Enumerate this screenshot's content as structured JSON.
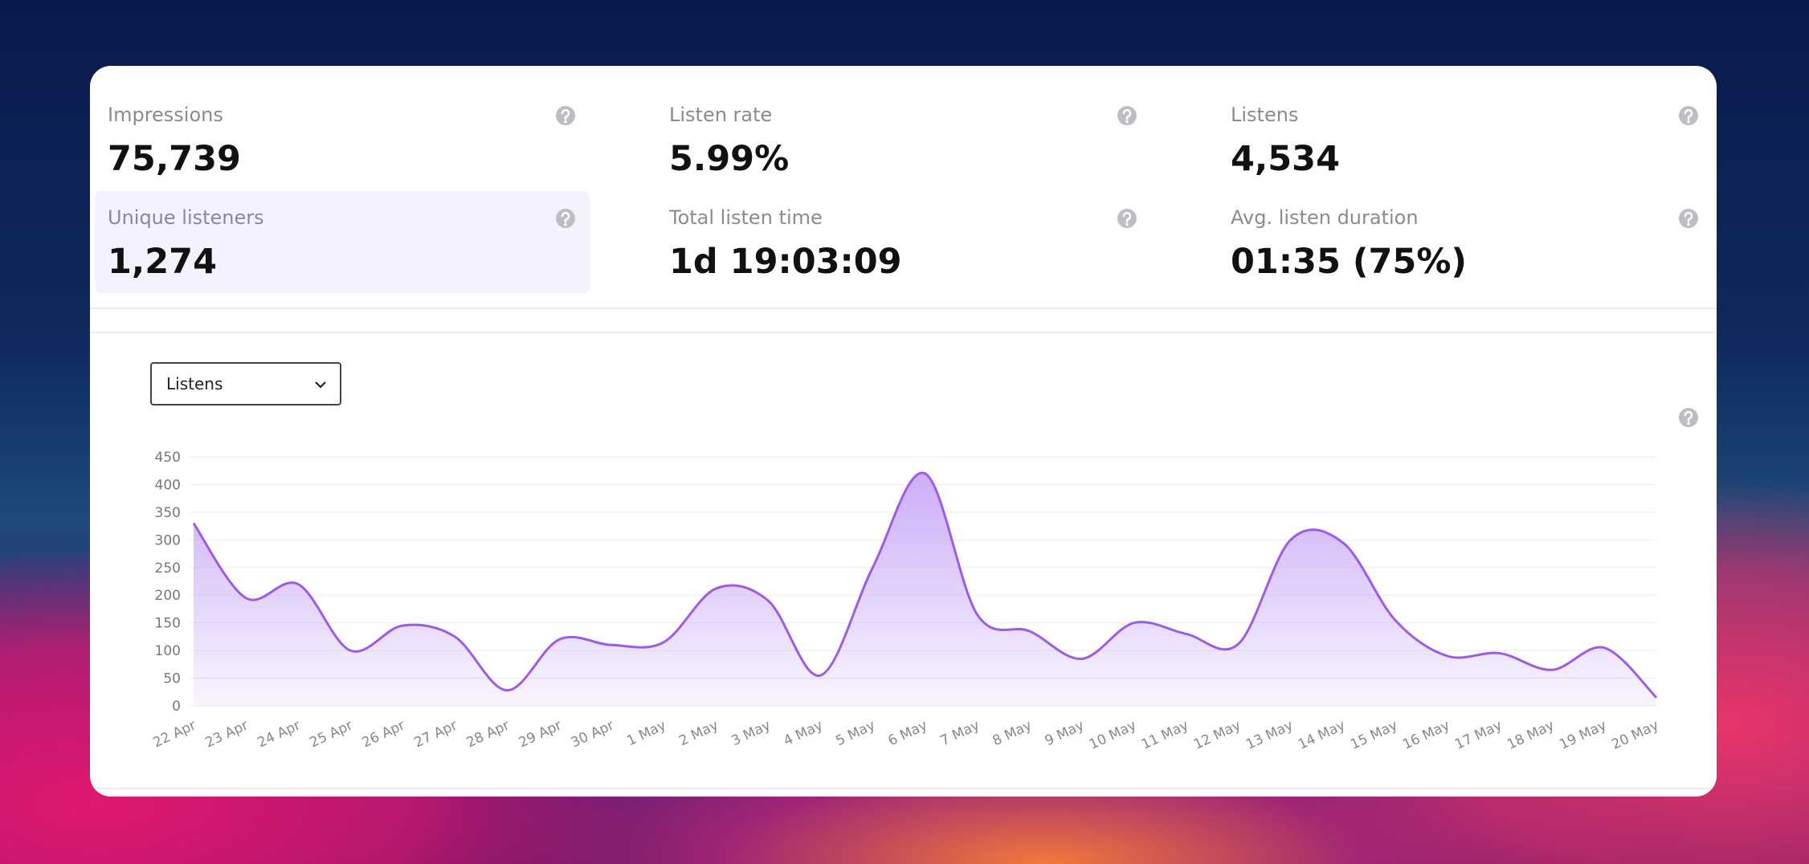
{
  "metrics": [
    {
      "label": "Impressions",
      "value": "75,739"
    },
    {
      "label": "Listen rate",
      "value": "5.99%"
    },
    {
      "label": "Listens",
      "value": "4,534"
    },
    {
      "label": "Unique listeners",
      "value": "1,274"
    },
    {
      "label": "Total listen time",
      "value": "1d 19:03:09"
    },
    {
      "label": "Avg. listen duration",
      "value": "01:35 (75%)"
    }
  ],
  "selector": "Listens",
  "chart_data": {
    "type": "area",
    "categories": [
      "22 Apr",
      "23 Apr",
      "24 Apr",
      "25 Apr",
      "26 Apr",
      "27 Apr",
      "28 Apr",
      "29 Apr",
      "30 Apr",
      "1 May",
      "2 May",
      "3 May",
      "4 May",
      "5 May",
      "6 May",
      "7 May",
      "8 May",
      "9 May",
      "10 May",
      "11 May",
      "12 May",
      "13 May",
      "14 May",
      "15 May",
      "16 May",
      "17 May",
      "18 May",
      "19 May",
      "20 May"
    ],
    "values": [
      330,
      195,
      220,
      100,
      145,
      125,
      28,
      120,
      110,
      115,
      212,
      190,
      55,
      250,
      420,
      165,
      135,
      85,
      150,
      130,
      112,
      300,
      295,
      155,
      90,
      95,
      65,
      105,
      15
    ],
    "color": "#9b5de5",
    "ylim": [
      0,
      450
    ],
    "yticks": [
      0,
      50,
      100,
      150,
      200,
      250,
      300,
      350,
      400,
      450
    ],
    "grid": true
  }
}
